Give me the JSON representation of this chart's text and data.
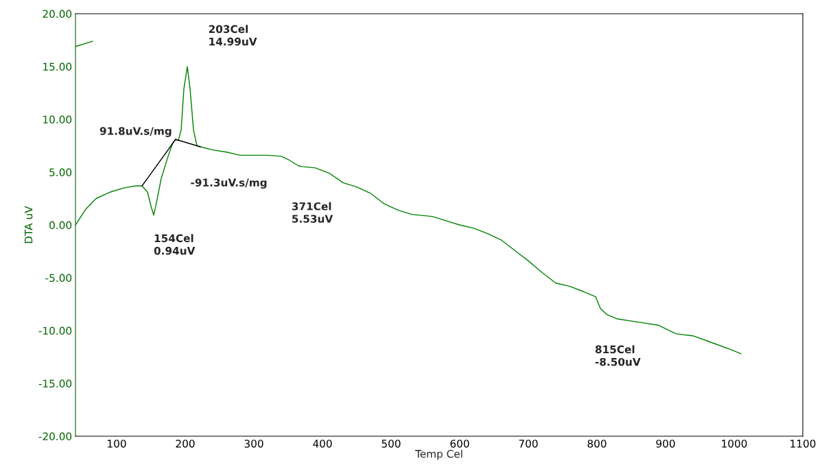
{
  "chart_data": {
    "type": "line",
    "xlabel": "Temp Cel",
    "ylabel": "DTA uV",
    "xlim": [
      40,
      1100
    ],
    "xticks": [
      100,
      200,
      300,
      400,
      500,
      600,
      700,
      800,
      900,
      1000,
      1100
    ],
    "ylim": [
      -20,
      20
    ],
    "yticks": [
      {
        "value": -20,
        "label": "-20.00"
      },
      {
        "value": -15,
        "label": "-15.00"
      },
      {
        "value": -10,
        "label": "-10.00"
      },
      {
        "value": -5,
        "label": "-5.00"
      },
      {
        "value": 0,
        "label": "0.00"
      },
      {
        "value": 5,
        "label": "5.00"
      },
      {
        "value": 10,
        "label": "10.00"
      },
      {
        "value": 15,
        "label": "15.00"
      },
      {
        "value": 20,
        "label": "20.00"
      }
    ],
    "grid": false,
    "legend": false,
    "marker": "none",
    "line_style": "solid",
    "series": [
      {
        "color": "#008000",
        "x": [
          40,
          55,
          70,
          90,
          110,
          128,
          137,
          145,
          150,
          154,
          157,
          165,
          175,
          182,
          186,
          190,
          194,
          198,
          203,
          207,
          212,
          217,
          222,
          240,
          260,
          280,
          300,
          320,
          340,
          350,
          365,
          371,
          390,
          410,
          430,
          450,
          470,
          490,
          510,
          530,
          560,
          580,
          600,
          620,
          640,
          660,
          680,
          700,
          720,
          740,
          760,
          780,
          798,
          805,
          815,
          830,
          860,
          890,
          915,
          940,
          970,
          995,
          1010
        ],
        "values": [
          0.0,
          1.5,
          2.5,
          3.1,
          3.5,
          3.7,
          3.7,
          3.1,
          1.8,
          0.94,
          1.8,
          4.4,
          6.5,
          7.8,
          8.1,
          8.0,
          9.0,
          12.9,
          14.99,
          12.9,
          9.0,
          7.5,
          7.4,
          7.1,
          6.9,
          6.6,
          6.6,
          6.6,
          6.5,
          6.2,
          5.6,
          5.53,
          5.4,
          4.9,
          4.0,
          3.6,
          3.0,
          2.0,
          1.4,
          1.0,
          0.8,
          0.4,
          0.0,
          -0.3,
          -0.8,
          -1.4,
          -2.4,
          -3.4,
          -4.5,
          -5.5,
          -5.8,
          -6.3,
          -6.8,
          -7.9,
          -8.5,
          -8.9,
          -9.2,
          -9.5,
          -10.3,
          -10.5,
          -11.2,
          -11.8,
          -12.2
        ]
      },
      {
        "color": "#008000",
        "x": [
          40,
          65
        ],
        "values": [
          16.9,
          17.4
        ]
      },
      {
        "color": "#000000",
        "x": [
          137,
          186
        ],
        "values": [
          3.7,
          8.1
        ]
      },
      {
        "color": "#000000",
        "x": [
          186,
          222
        ],
        "values": [
          8.1,
          7.4
        ]
      }
    ],
    "annotations": [
      {
        "text": "203Cel\n14.99uV",
        "x": 203,
        "y": 14.99
      },
      {
        "text": "154Cel\n0.94uV",
        "x": 154,
        "y": 0.94
      },
      "371Cel\n5.53uV",
      {
        "text": "815Cel\n-8.50uV",
        "x": 815,
        "y": -8.5
      },
      "91.8uV.s/mg",
      "-91.3uV.s/mg"
    ]
  }
}
